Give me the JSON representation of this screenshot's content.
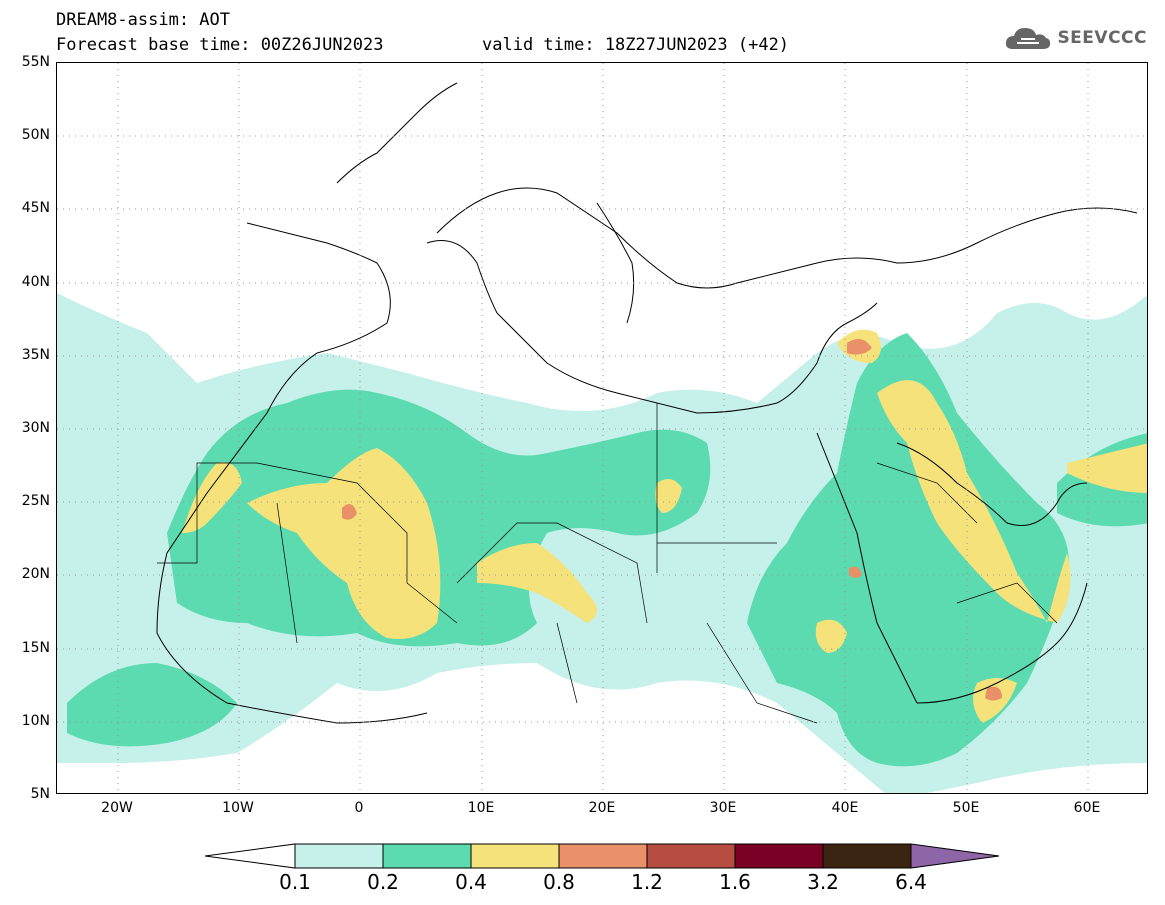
{
  "header": {
    "title": "DREAM8-assim: AOT",
    "base_time": "Forecast base time: 00Z26JUN2023",
    "valid_time": "valid time: 18Z27JUN2023 (+42)"
  },
  "logo": {
    "text": "SEEVCCC",
    "icon": "cloud-icon"
  },
  "map": {
    "lon_range": [
      -25,
      65
    ],
    "lat_range": [
      5,
      55
    ],
    "lat_labels": [
      "55N",
      "50N",
      "45N",
      "40N",
      "35N",
      "30N",
      "25N",
      "20N",
      "15N",
      "10N",
      "5N"
    ],
    "lon_labels": [
      "20W",
      "10W",
      "0",
      "10E",
      "20E",
      "30E",
      "40E",
      "50E",
      "60E"
    ],
    "grid": "dotted"
  },
  "colorbar": {
    "colors": [
      "#ffffff",
      "#c6f0ea",
      "#5cdbb1",
      "#f5e27a",
      "#e99068",
      "#b54e40",
      "#7a0025",
      "#3b2512",
      "#8e66a8"
    ],
    "labels": [
      "0.1",
      "0.2",
      "0.4",
      "0.8",
      "1.2",
      "1.6",
      "3.2",
      "6.4"
    ]
  }
}
